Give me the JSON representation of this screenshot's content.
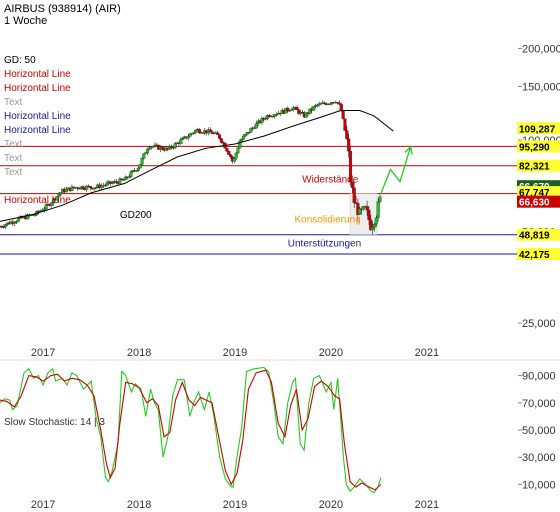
{
  "header": {
    "title": "AIRBUS (938914) (AIR)",
    "interval": "1 Woche"
  },
  "chart_data": [
    {
      "type": "candlestick",
      "scale": "log",
      "ylim": [
        22000,
        230000
      ],
      "xlim": [
        2016.55,
        2021.95
      ],
      "y_ticks": [
        {
          "value": 200000,
          "label": "200,000"
        },
        {
          "value": 150000,
          "label": "150,000"
        },
        {
          "value": 100000,
          "label": "100,000"
        },
        {
          "value": 50000,
          "label": "50,000"
        },
        {
          "value": 25000,
          "label": "25,000"
        }
      ],
      "x_ticks": [
        {
          "value": 2017,
          "label": "2017"
        },
        {
          "value": 2018,
          "label": "2018"
        },
        {
          "value": 2019,
          "label": "2019"
        },
        {
          "value": 2020,
          "label": "2020"
        },
        {
          "value": 2021,
          "label": "2021"
        }
      ],
      "price_path": [
        [
          2016.55,
          52
        ],
        [
          2016.75,
          55
        ],
        [
          2016.92,
          57
        ],
        [
          2017.05,
          61
        ],
        [
          2017.2,
          68
        ],
        [
          2017.35,
          70
        ],
        [
          2017.55,
          70
        ],
        [
          2017.7,
          72
        ],
        [
          2017.85,
          74
        ],
        [
          2018.0,
          82
        ],
        [
          2018.1,
          96
        ],
        [
          2018.3,
          93
        ],
        [
          2018.45,
          100
        ],
        [
          2018.6,
          108
        ],
        [
          2018.75,
          106
        ],
        [
          2018.83,
          103
        ],
        [
          2018.95,
          89
        ],
        [
          2018.98,
          84
        ],
        [
          2019.05,
          99
        ],
        [
          2019.2,
          111
        ],
        [
          2019.35,
          121
        ],
        [
          2019.5,
          124
        ],
        [
          2019.6,
          128
        ],
        [
          2019.72,
          120
        ],
        [
          2019.85,
          130
        ],
        [
          2019.95,
          132
        ],
        [
          2020.05,
          135
        ],
        [
          2020.1,
          128
        ],
        [
          2020.14,
          110
        ],
        [
          2020.18,
          94
        ],
        [
          2020.2,
          75
        ],
        [
          2020.24,
          63
        ],
        [
          2020.3,
          57
        ],
        [
          2020.36,
          59
        ],
        [
          2020.42,
          52
        ],
        [
          2020.47,
          57
        ],
        [
          2020.52,
          65
        ]
      ],
      "gd200_path": [
        [
          2016.55,
          54
        ],
        [
          2016.9,
          57
        ],
        [
          2017.2,
          61
        ],
        [
          2017.5,
          67
        ],
        [
          2017.85,
          72
        ],
        [
          2018.1,
          79
        ],
        [
          2018.4,
          88
        ],
        [
          2018.7,
          94
        ],
        [
          2019.0,
          97
        ],
        [
          2019.3,
          103
        ],
        [
          2019.6,
          111
        ],
        [
          2019.9,
          119
        ],
        [
          2020.1,
          125
        ],
        [
          2020.3,
          125
        ],
        [
          2020.45,
          120
        ],
        [
          2020.65,
          107
        ]
      ],
      "projection": [
        [
          2020.52,
          66.6
        ],
        [
          2020.62,
          80
        ],
        [
          2020.72,
          73
        ],
        [
          2020.83,
          95
        ]
      ],
      "consolidation_box": {
        "x1": 2020.2,
        "x2": 2020.48,
        "y_low": 48.9,
        "y_high": 66.6
      },
      "horizontal_lines": [
        {
          "value": 95.29,
          "color": "#cc0000"
        },
        {
          "value": 82.321,
          "color": "#cc0000"
        },
        {
          "value": 66.63,
          "color": "#cc0000"
        },
        {
          "value": 48.819,
          "color": "#1a1a99"
        },
        {
          "value": 42.175,
          "color": "#1a1a99"
        }
      ],
      "price_tags": [
        {
          "label": "109,287",
          "value": 109.287,
          "bg": "#ffff33",
          "fg": "#000000"
        },
        {
          "label": "95,290",
          "value": 95.29,
          "bg": "#ffff33",
          "fg": "#000000"
        },
        {
          "label": "82,321",
          "value": 82.321,
          "bg": "#ffff33",
          "fg": "#000000"
        },
        {
          "label": "66,670",
          "value": 70.5,
          "bg": "#1e5e1e",
          "fg": "#ffffff"
        },
        {
          "label": "67,747",
          "value": 67.4,
          "bg": "#ffff33",
          "fg": "#000000"
        },
        {
          "label": "66,630",
          "value": 62.7,
          "bg": "#cc0000",
          "fg": "#ffffff"
        },
        {
          "label": "48,819",
          "value": 48.819,
          "bg": "#ffff33",
          "fg": "#000000"
        },
        {
          "label": "42,175",
          "value": 42.175,
          "bg": "#ffff33",
          "fg": "#000000"
        }
      ],
      "annotations": [
        {
          "text": "GD200",
          "x": 2017.8,
          "value": 55.5,
          "color": "#000000"
        },
        {
          "text": "Widerstände",
          "x": 2019.7,
          "value": 72.5,
          "color": "#cc0000"
        },
        {
          "text": "Konsolidierung",
          "x": 2019.62,
          "value": 53.5,
          "color": "#ff9900"
        },
        {
          "text": "Unterstützungen",
          "x": 2019.55,
          "value": 44.6,
          "color": "#1a1a99"
        }
      ],
      "legend": [
        {
          "text": "GD: 50",
          "color": "#000000"
        },
        {
          "text": "Horizontal Line",
          "color": "#cc0000"
        },
        {
          "text": "Horizontal Line",
          "color": "#cc0000"
        },
        {
          "text": "Text",
          "color": "#999999"
        },
        {
          "text": "Horizontal Line",
          "color": "#1a1a99"
        },
        {
          "text": "Horizontal Line",
          "color": "#1a1a99"
        },
        {
          "text": "Text",
          "color": "#999999"
        },
        {
          "text": "Text",
          "color": "#999999"
        },
        {
          "text": "Text",
          "color": "#999999"
        }
      ],
      "legend_extra": {
        "text": "Horizontal Line",
        "color": "#cc0000"
      },
      "colors": {
        "up": "#22bb22",
        "down": "#cc0000",
        "gd200": "#000000",
        "projection": "#22cc22"
      }
    },
    {
      "type": "line",
      "title": "Slow Stochastic: 14 | 3",
      "ylim": [
        0,
        100
      ],
      "y_ticks": [
        {
          "value": 90,
          "label": "90,000"
        },
        {
          "value": 70,
          "label": "70,000"
        },
        {
          "value": 50,
          "label": "50,000"
        },
        {
          "value": 30,
          "label": "30,000"
        },
        {
          "value": 10,
          "label": "10,000"
        }
      ],
      "x_ticks": [
        {
          "value": 2017,
          "label": "2017"
        },
        {
          "value": 2018,
          "label": "2018"
        },
        {
          "value": 2019,
          "label": "2019"
        },
        {
          "value": 2020,
          "label": "2020"
        },
        {
          "value": 2021,
          "label": "2021"
        }
      ],
      "series": [
        {
          "color": "#22cc22",
          "points": [
            [
              2016.55,
              70
            ],
            [
              2016.6,
              73
            ],
            [
              2016.65,
              72
            ],
            [
              2016.68,
              65
            ],
            [
              2016.73,
              68
            ],
            [
              2016.8,
              92
            ],
            [
              2016.85,
              95
            ],
            [
              2016.9,
              88
            ],
            [
              2016.95,
              90
            ],
            [
              2017.0,
              83
            ],
            [
              2017.05,
              92
            ],
            [
              2017.1,
              95
            ],
            [
              2017.13,
              86
            ],
            [
              2017.2,
              88
            ],
            [
              2017.25,
              83
            ],
            [
              2017.3,
              92
            ],
            [
              2017.35,
              90
            ],
            [
              2017.42,
              80
            ],
            [
              2017.5,
              86
            ],
            [
              2017.55,
              60
            ],
            [
              2017.6,
              45
            ],
            [
              2017.65,
              15
            ],
            [
              2017.68,
              12
            ],
            [
              2017.72,
              20
            ],
            [
              2017.78,
              40
            ],
            [
              2017.82,
              93
            ],
            [
              2017.86,
              90
            ],
            [
              2017.92,
              78
            ],
            [
              2017.96,
              84
            ],
            [
              2018.02,
              80
            ],
            [
              2018.07,
              60
            ],
            [
              2018.12,
              80
            ],
            [
              2018.16,
              70
            ],
            [
              2018.2,
              65
            ],
            [
              2018.25,
              30
            ],
            [
              2018.3,
              45
            ],
            [
              2018.35,
              75
            ],
            [
              2018.4,
              87
            ],
            [
              2018.47,
              87
            ],
            [
              2018.53,
              60
            ],
            [
              2018.57,
              70
            ],
            [
              2018.62,
              78
            ],
            [
              2018.68,
              65
            ],
            [
              2018.73,
              78
            ],
            [
              2018.78,
              60
            ],
            [
              2018.84,
              30
            ],
            [
              2018.9,
              14
            ],
            [
              2018.95,
              9
            ],
            [
              2018.98,
              8
            ],
            [
              2019.02,
              30
            ],
            [
              2019.07,
              52
            ],
            [
              2019.12,
              93
            ],
            [
              2019.2,
              95
            ],
            [
              2019.3,
              96
            ],
            [
              2019.35,
              93
            ],
            [
              2019.4,
              72
            ],
            [
              2019.45,
              45
            ],
            [
              2019.5,
              40
            ],
            [
              2019.55,
              70
            ],
            [
              2019.6,
              85
            ],
            [
              2019.63,
              88
            ],
            [
              2019.68,
              40
            ],
            [
              2019.72,
              35
            ],
            [
              2019.77,
              70
            ],
            [
              2019.82,
              88
            ],
            [
              2019.88,
              90
            ],
            [
              2019.95,
              78
            ],
            [
              2020.0,
              85
            ],
            [
              2020.03,
              65
            ],
            [
              2020.07,
              88
            ],
            [
              2020.1,
              60
            ],
            [
              2020.13,
              30
            ],
            [
              2020.16,
              10
            ],
            [
              2020.2,
              5
            ],
            [
              2020.24,
              8
            ],
            [
              2020.3,
              14
            ],
            [
              2020.36,
              10
            ],
            [
              2020.42,
              5
            ],
            [
              2020.45,
              4
            ],
            [
              2020.49,
              8
            ],
            [
              2020.52,
              15
            ]
          ]
        },
        {
          "color": "#cc0000",
          "points": [
            [
              2016.55,
              72
            ],
            [
              2016.62,
              71
            ],
            [
              2016.7,
              67
            ],
            [
              2016.77,
              75
            ],
            [
              2016.85,
              90
            ],
            [
              2016.93,
              89
            ],
            [
              2017.0,
              86
            ],
            [
              2017.08,
              90
            ],
            [
              2017.15,
              91
            ],
            [
              2017.22,
              86
            ],
            [
              2017.3,
              88
            ],
            [
              2017.38,
              87
            ],
            [
              2017.46,
              83
            ],
            [
              2017.53,
              75
            ],
            [
              2017.6,
              50
            ],
            [
              2017.66,
              25
            ],
            [
              2017.7,
              15
            ],
            [
              2017.75,
              22
            ],
            [
              2017.8,
              55
            ],
            [
              2017.86,
              85
            ],
            [
              2017.93,
              84
            ],
            [
              2018.0,
              81
            ],
            [
              2018.08,
              70
            ],
            [
              2018.14,
              73
            ],
            [
              2018.2,
              68
            ],
            [
              2018.26,
              45
            ],
            [
              2018.32,
              48
            ],
            [
              2018.38,
              72
            ],
            [
              2018.45,
              85
            ],
            [
              2018.52,
              72
            ],
            [
              2018.58,
              68
            ],
            [
              2018.64,
              74
            ],
            [
              2018.7,
              72
            ],
            [
              2018.76,
              70
            ],
            [
              2018.83,
              45
            ],
            [
              2018.9,
              20
            ],
            [
              2018.96,
              10
            ],
            [
              2019.02,
              18
            ],
            [
              2019.08,
              42
            ],
            [
              2019.14,
              80
            ],
            [
              2019.22,
              92
            ],
            [
              2019.32,
              94
            ],
            [
              2019.38,
              85
            ],
            [
              2019.45,
              55
            ],
            [
              2019.52,
              45
            ],
            [
              2019.58,
              68
            ],
            [
              2019.64,
              80
            ],
            [
              2019.7,
              50
            ],
            [
              2019.76,
              58
            ],
            [
              2019.83,
              82
            ],
            [
              2019.9,
              86
            ],
            [
              2019.97,
              82
            ],
            [
              2020.04,
              75
            ],
            [
              2020.09,
              73
            ],
            [
              2020.14,
              40
            ],
            [
              2020.2,
              12
            ],
            [
              2020.26,
              8
            ],
            [
              2020.32,
              11
            ],
            [
              2020.4,
              8
            ],
            [
              2020.46,
              6
            ],
            [
              2020.52,
              10
            ]
          ]
        }
      ]
    }
  ]
}
